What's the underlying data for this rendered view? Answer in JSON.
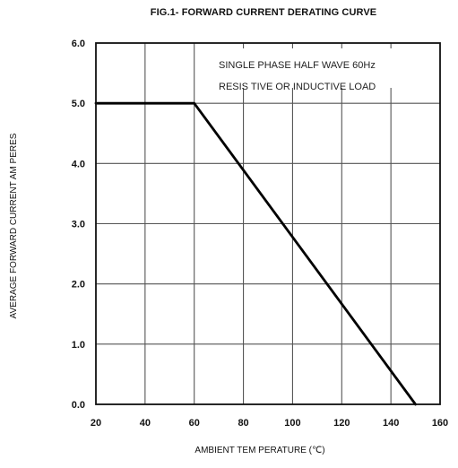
{
  "chart_data": {
    "type": "line",
    "title": "FIG.1- FORWARD CURRENT DERATING CURVE",
    "xlabel": "AMBIENT TEM PERATURE (℃)",
    "ylabel": "AVERAGE FORWARD CURRENT AM PERES",
    "xlim": [
      20,
      160
    ],
    "ylim": [
      0,
      6
    ],
    "x_ticks": [
      20,
      40,
      60,
      80,
      100,
      120,
      140,
      160
    ],
    "x_tick_labels": [
      "20",
      "40",
      "60",
      "80",
      "100",
      "120",
      "140",
      "160"
    ],
    "y_ticks": [
      0,
      1,
      2,
      3,
      4,
      5,
      6
    ],
    "y_tick_labels": [
      "0.0",
      "1.0",
      "2.0",
      "3.0",
      "4.0",
      "5.0",
      "6.0"
    ],
    "grid": true,
    "annotations": [
      "SINGLE PHASE HALF WAVE 60Hz",
      "RESIS TIVE OR INDUCTIVE LOAD"
    ],
    "series": [
      {
        "x": [
          20,
          60,
          150
        ],
        "y": [
          5.0,
          5.0,
          0.0
        ],
        "color": "#000000"
      }
    ]
  }
}
